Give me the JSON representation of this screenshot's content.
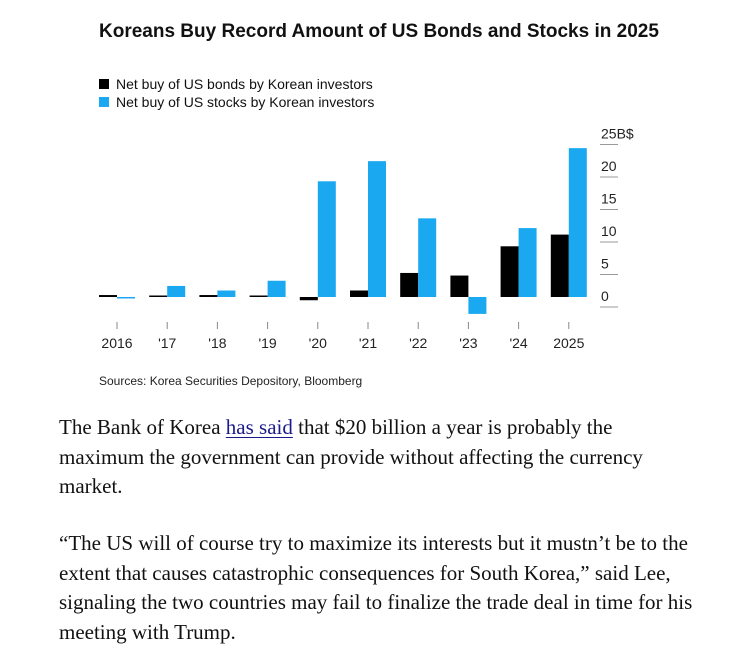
{
  "chart_data": {
    "type": "bar",
    "title": "Koreans Buy Record Amount of US Bonds and Stocks in 2025",
    "categories": [
      "2016",
      "'17",
      "'18",
      "'19",
      "'20",
      "'21",
      "'22",
      "'23",
      "'24",
      "2025"
    ],
    "series": [
      {
        "name": "Net buy of US bonds by Korean investors",
        "color": "#000000",
        "values": [
          0.3,
          0.1,
          0.3,
          0.2,
          -0.5,
          1.0,
          3.7,
          3.3,
          7.8,
          9.6
        ]
      },
      {
        "name": "Net buy of US stocks by Korean investors",
        "color": "#1aa9f0",
        "values": [
          -0.1,
          1.7,
          1.0,
          2.5,
          17.8,
          20.9,
          12.1,
          -2.6,
          10.6,
          22.9
        ]
      }
    ],
    "yaxis": {
      "ticks": [
        0,
        5,
        10,
        15,
        20,
        25
      ],
      "tick_labels": [
        "0",
        "5",
        "10",
        "15",
        "20",
        "25B$"
      ],
      "position": "right",
      "range": [
        -3,
        25
      ]
    },
    "grid": false,
    "legend_position": "top-left",
    "source": "Sources: Korea Securities Depository, Bloomberg"
  },
  "article": {
    "para1": {
      "before": "The Bank of Korea ",
      "link": "has said",
      "after": " that $20 billion a year is probably the maximum the government can provide without affecting the currency market."
    },
    "para2": "“The US will of course try to maximize its interests but it mustn’t be to the extent that causes catastrophic consequences for South Korea,” said Lee, signaling the two countries may fail to finalize the trade deal in time for his meeting with Trump."
  }
}
